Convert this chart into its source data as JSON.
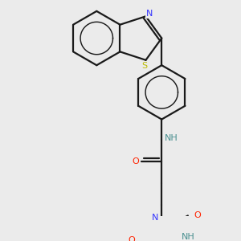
{
  "bg_color": "#ebebeb",
  "bond_color": "#1a1a1a",
  "bond_width": 1.6,
  "N_color": "#3333ff",
  "O_color": "#ff2200",
  "S_color": "#bbbb00",
  "NH_color": "#4a9090",
  "figsize": [
    3.0,
    3.0
  ],
  "dpi": 100,
  "xlim": [
    -1.6,
    2.8
  ],
  "ylim": [
    -3.8,
    3.0
  ]
}
